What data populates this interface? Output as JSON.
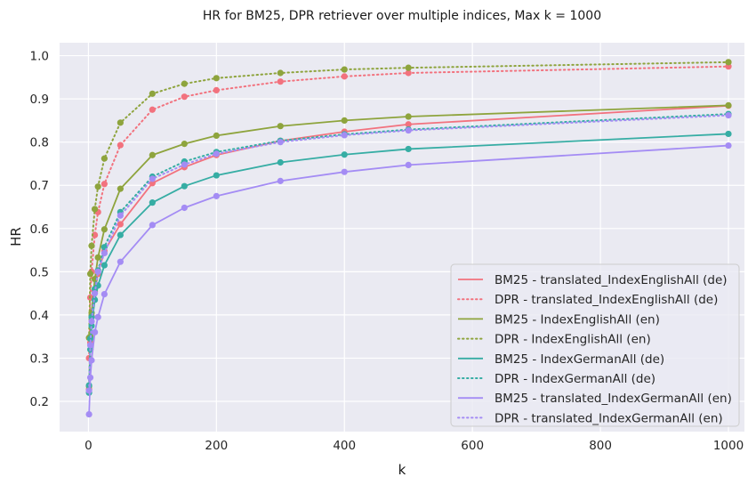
{
  "chart_data": {
    "type": "line",
    "title": "HR for BM25, DPR retriever over multiple indices, Max k = 1000",
    "xlabel": "k",
    "ylabel": "HR",
    "xlim": [
      -45,
      1025
    ],
    "ylim": [
      0.13,
      1.03
    ],
    "xticks": [
      0,
      200,
      400,
      600,
      800,
      1000
    ],
    "xtick_labels": [
      "0",
      "200",
      "400",
      "600",
      "800",
      "1000"
    ],
    "yticks": [
      0.2,
      0.3,
      0.4,
      0.5,
      0.6,
      0.7,
      0.8,
      0.9,
      1.0
    ],
    "ytick_labels": [
      "0.2",
      "0.3",
      "0.4",
      "0.5",
      "0.6",
      "0.7",
      "0.8",
      "0.9",
      "1.0"
    ],
    "grid": true,
    "background": "#eaeaf2",
    "legend_position": "lower right",
    "x": [
      1,
      3,
      5,
      10,
      15,
      25,
      50,
      100,
      150,
      200,
      300,
      400,
      500,
      1000
    ],
    "series": [
      {
        "name": "BM25 - translated_IndexEnglishAll (de)",
        "style": "solid",
        "color": "#f2727e",
        "values": [
          0.228,
          0.336,
          0.398,
          0.455,
          0.495,
          0.548,
          0.61,
          0.705,
          0.742,
          0.77,
          0.803,
          0.824,
          0.841,
          0.884
        ]
      },
      {
        "name": "DPR - translated_IndexEnglishAll (de)",
        "style": "dotted",
        "color": "#f2727e",
        "values": [
          0.3,
          0.44,
          0.5,
          0.585,
          0.638,
          0.703,
          0.793,
          0.875,
          0.905,
          0.92,
          0.94,
          0.952,
          0.96,
          0.975
        ]
      },
      {
        "name": "BM25 - IndexEnglishAll (en)",
        "style": "solid",
        "color": "#8ea43d",
        "values": [
          0.235,
          0.35,
          0.405,
          0.483,
          0.533,
          0.598,
          0.692,
          0.77,
          0.796,
          0.815,
          0.837,
          0.85,
          0.859,
          0.885
        ]
      },
      {
        "name": "DPR - IndexEnglishAll (en)",
        "style": "dotted",
        "color": "#8ea43d",
        "values": [
          0.347,
          0.495,
          0.56,
          0.645,
          0.697,
          0.762,
          0.845,
          0.912,
          0.935,
          0.948,
          0.96,
          0.968,
          0.972,
          0.985
        ]
      },
      {
        "name": "BM25 - IndexGermanAll (de)",
        "style": "solid",
        "color": "#36ada4",
        "values": [
          0.22,
          0.32,
          0.375,
          0.435,
          0.468,
          0.515,
          0.585,
          0.66,
          0.698,
          0.723,
          0.753,
          0.771,
          0.784,
          0.819
        ]
      },
      {
        "name": "DPR - IndexGermanAll (de)",
        "style": "dotted",
        "color": "#36ada4",
        "values": [
          0.237,
          0.345,
          0.395,
          0.46,
          0.503,
          0.557,
          0.638,
          0.72,
          0.755,
          0.777,
          0.803,
          0.818,
          0.829,
          0.865
        ]
      },
      {
        "name": "BM25 - translated_IndexGermanAll (en)",
        "style": "solid",
        "color": "#a48cf4",
        "values": [
          0.17,
          0.255,
          0.295,
          0.36,
          0.395,
          0.448,
          0.523,
          0.608,
          0.648,
          0.675,
          0.71,
          0.731,
          0.747,
          0.792
        ]
      },
      {
        "name": "DPR - translated_IndexGermanAll (en)",
        "style": "dotted",
        "color": "#a48cf4",
        "values": [
          0.225,
          0.33,
          0.385,
          0.45,
          0.5,
          0.543,
          0.63,
          0.715,
          0.748,
          0.773,
          0.8,
          0.816,
          0.827,
          0.862
        ]
      }
    ]
  }
}
